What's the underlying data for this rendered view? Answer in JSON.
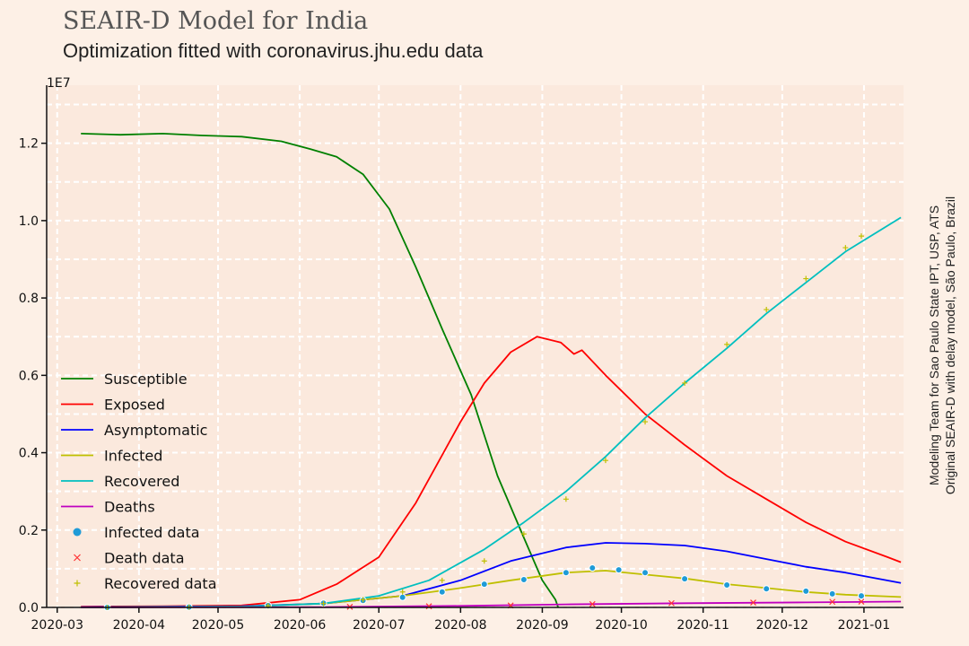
{
  "chart_data": {
    "type": "line",
    "title": "SEAIR-D Model for India",
    "subtitle": "Optimization fitted with coronavirus.jhu.edu data",
    "y_scale_label": "1E7",
    "ylim": [
      0,
      1.35
    ],
    "xlim": [
      "2020-02-26",
      "2021-01-16"
    ],
    "grid": true,
    "legend_position": "center-left",
    "x_ticks": [
      "2020-03",
      "2020-04",
      "2020-05",
      "2020-06",
      "2020-07",
      "2020-08",
      "2020-09",
      "2020-10",
      "2020-11",
      "2020-12",
      "2021-01"
    ],
    "y_ticks": [
      "0.0",
      "0.2",
      "0.4",
      "0.6",
      "0.8",
      "1.0",
      "1.2"
    ],
    "series": [
      {
        "name": "Susceptible",
        "kind": "line",
        "color": "#008000",
        "points": [
          [
            "2020-03-10",
            1.225
          ],
          [
            "2020-03-25",
            1.222
          ],
          [
            "2020-04-10",
            1.225
          ],
          [
            "2020-04-25",
            1.22
          ],
          [
            "2020-05-10",
            1.217
          ],
          [
            "2020-05-25",
            1.205
          ],
          [
            "2020-06-05",
            1.185
          ],
          [
            "2020-06-15",
            1.165
          ],
          [
            "2020-06-25",
            1.12
          ],
          [
            "2020-07-05",
            1.03
          ],
          [
            "2020-07-15",
            0.88
          ],
          [
            "2020-07-25",
            0.72
          ],
          [
            "2020-08-05",
            0.55
          ],
          [
            "2020-08-15",
            0.34
          ],
          [
            "2020-08-25",
            0.18
          ],
          [
            "2020-09-01",
            0.07
          ],
          [
            "2020-09-06",
            0.02
          ],
          [
            "2020-09-07",
            0.0
          ]
        ]
      },
      {
        "name": "Exposed",
        "kind": "line",
        "color": "#ff0000",
        "points": [
          [
            "2020-03-10",
            0.002
          ],
          [
            "2020-04-10",
            0.003
          ],
          [
            "2020-05-10",
            0.005
          ],
          [
            "2020-06-01",
            0.02
          ],
          [
            "2020-06-15",
            0.06
          ],
          [
            "2020-07-01",
            0.13
          ],
          [
            "2020-07-15",
            0.27
          ],
          [
            "2020-08-01",
            0.48
          ],
          [
            "2020-08-10",
            0.58
          ],
          [
            "2020-08-20",
            0.66
          ],
          [
            "2020-08-30",
            0.7
          ],
          [
            "2020-09-08",
            0.685
          ],
          [
            "2020-09-13",
            0.655
          ],
          [
            "2020-09-16",
            0.665
          ],
          [
            "2020-09-25",
            0.6
          ],
          [
            "2020-10-10",
            0.5
          ],
          [
            "2020-10-25",
            0.42
          ],
          [
            "2020-11-10",
            0.34
          ],
          [
            "2020-11-25",
            0.28
          ],
          [
            "2020-12-10",
            0.22
          ],
          [
            "2020-12-25",
            0.17
          ],
          [
            "2021-01-10",
            0.13
          ],
          [
            "2021-01-15",
            0.117
          ]
        ]
      },
      {
        "name": "Asymptomatic",
        "kind": "line",
        "color": "#0000ff",
        "points": [
          [
            "2020-03-10",
            0.001
          ],
          [
            "2020-05-10",
            0.003
          ],
          [
            "2020-06-10",
            0.01
          ],
          [
            "2020-07-10",
            0.03
          ],
          [
            "2020-08-01",
            0.07
          ],
          [
            "2020-08-20",
            0.12
          ],
          [
            "2020-09-10",
            0.155
          ],
          [
            "2020-09-25",
            0.167
          ],
          [
            "2020-10-10",
            0.165
          ],
          [
            "2020-10-25",
            0.16
          ],
          [
            "2020-11-10",
            0.145
          ],
          [
            "2020-11-25",
            0.125
          ],
          [
            "2020-12-10",
            0.105
          ],
          [
            "2020-12-25",
            0.09
          ],
          [
            "2021-01-15",
            0.063
          ]
        ]
      },
      {
        "name": "Infected",
        "kind": "line",
        "color": "#bfbf00",
        "points": [
          [
            "2020-03-10",
            0.0
          ],
          [
            "2020-05-10",
            0.002
          ],
          [
            "2020-06-10",
            0.01
          ],
          [
            "2020-07-10",
            0.03
          ],
          [
            "2020-08-01",
            0.05
          ],
          [
            "2020-08-20",
            0.07
          ],
          [
            "2020-09-10",
            0.09
          ],
          [
            "2020-09-25",
            0.095
          ],
          [
            "2020-10-10",
            0.085
          ],
          [
            "2020-10-25",
            0.075
          ],
          [
            "2020-11-10",
            0.06
          ],
          [
            "2020-11-25",
            0.05
          ],
          [
            "2020-12-10",
            0.04
          ],
          [
            "2020-12-25",
            0.033
          ],
          [
            "2021-01-15",
            0.027
          ]
        ]
      },
      {
        "name": "Recovered",
        "kind": "line",
        "color": "#00bfbf",
        "points": [
          [
            "2020-03-10",
            0.0
          ],
          [
            "2020-05-10",
            0.002
          ],
          [
            "2020-06-10",
            0.01
          ],
          [
            "2020-07-01",
            0.03
          ],
          [
            "2020-07-20",
            0.07
          ],
          [
            "2020-08-10",
            0.15
          ],
          [
            "2020-08-25",
            0.22
          ],
          [
            "2020-09-10",
            0.3
          ],
          [
            "2020-09-25",
            0.39
          ],
          [
            "2020-10-10",
            0.49
          ],
          [
            "2020-10-25",
            0.58
          ],
          [
            "2020-11-10",
            0.67
          ],
          [
            "2020-11-25",
            0.76
          ],
          [
            "2020-12-10",
            0.84
          ],
          [
            "2020-12-25",
            0.92
          ],
          [
            "2021-01-15",
            1.008
          ]
        ]
      },
      {
        "name": "Deaths",
        "kind": "line",
        "color": "#bf00bf",
        "points": [
          [
            "2020-03-10",
            0.0
          ],
          [
            "2020-06-10",
            0.001
          ],
          [
            "2020-08-01",
            0.004
          ],
          [
            "2020-09-10",
            0.008
          ],
          [
            "2020-10-25",
            0.011
          ],
          [
            "2020-12-10",
            0.013
          ],
          [
            "2021-01-15",
            0.015
          ]
        ]
      },
      {
        "name": "Infected data",
        "kind": "dots",
        "color": "#1f9bd7",
        "points": [
          [
            "2020-03-20",
            0.0
          ],
          [
            "2020-04-20",
            0.001
          ],
          [
            "2020-05-20",
            0.005
          ],
          [
            "2020-06-10",
            0.011
          ],
          [
            "2020-06-25",
            0.018
          ],
          [
            "2020-07-10",
            0.026
          ],
          [
            "2020-07-25",
            0.04
          ],
          [
            "2020-08-10",
            0.06
          ],
          [
            "2020-08-25",
            0.072
          ],
          [
            "2020-09-10",
            0.09
          ],
          [
            "2020-09-20",
            0.102
          ],
          [
            "2020-09-30",
            0.097
          ],
          [
            "2020-10-10",
            0.09
          ],
          [
            "2020-10-25",
            0.074
          ],
          [
            "2020-11-10",
            0.058
          ],
          [
            "2020-11-25",
            0.048
          ],
          [
            "2020-12-10",
            0.042
          ],
          [
            "2020-12-20",
            0.035
          ],
          [
            "2020-12-31",
            0.03
          ]
        ]
      },
      {
        "name": "Death data",
        "kind": "cross",
        "color": "#ff3333",
        "points": [
          [
            "2020-06-20",
            0.0015
          ],
          [
            "2020-07-20",
            0.003
          ],
          [
            "2020-08-20",
            0.005
          ],
          [
            "2020-09-20",
            0.0085
          ],
          [
            "2020-10-20",
            0.011
          ],
          [
            "2020-11-20",
            0.0125
          ],
          [
            "2020-12-20",
            0.0145
          ],
          [
            "2020-12-31",
            0.015
          ]
        ]
      },
      {
        "name": "Recovered data",
        "kind": "plus",
        "color": "#bfbf00",
        "points": [
          [
            "2020-03-20",
            0.0
          ],
          [
            "2020-04-20",
            0.001
          ],
          [
            "2020-05-20",
            0.004
          ],
          [
            "2020-06-10",
            0.01
          ],
          [
            "2020-06-25",
            0.02
          ],
          [
            "2020-07-10",
            0.04
          ],
          [
            "2020-07-25",
            0.07
          ],
          [
            "2020-08-10",
            0.12
          ],
          [
            "2020-08-25",
            0.19
          ],
          [
            "2020-09-10",
            0.28
          ],
          [
            "2020-09-25",
            0.38
          ],
          [
            "2020-10-10",
            0.48
          ],
          [
            "2020-10-25",
            0.58
          ],
          [
            "2020-11-10",
            0.68
          ],
          [
            "2020-11-25",
            0.77
          ],
          [
            "2020-12-10",
            0.85
          ],
          [
            "2020-12-25",
            0.93
          ],
          [
            "2020-12-31",
            0.96
          ]
        ]
      }
    ]
  },
  "credits": {
    "line1": "Modeling Team for Sao Paulo State IPT, USP, ATS",
    "line2": "Original SEAIR-D with delay model, São Paulo, Brazil"
  }
}
